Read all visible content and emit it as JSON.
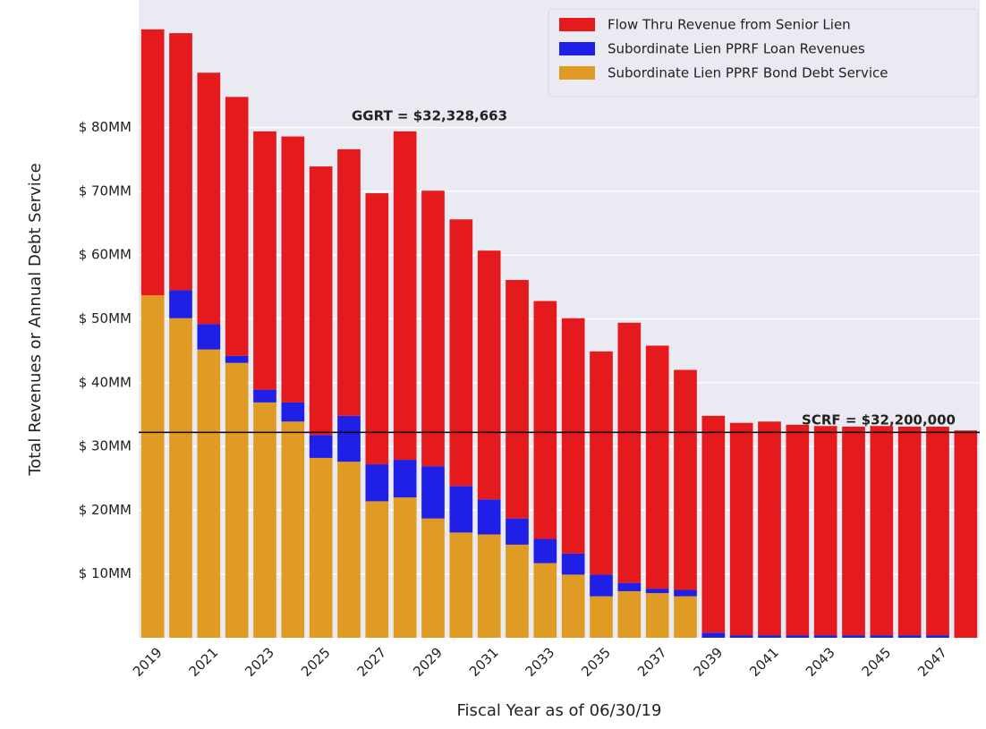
{
  "chart_data": {
    "type": "stacked_bar",
    "xlabel": "Fiscal Year as of 06/30/19",
    "ylabel": "Total Revenues or Annual Debt Service",
    "categories": [
      "2019",
      null,
      "2021",
      null,
      "2023",
      null,
      "2025",
      null,
      "2027",
      null,
      "2029",
      null,
      "2031",
      null,
      "2033",
      null,
      "2035",
      null,
      "2037",
      null,
      "2039",
      null,
      "2041",
      null,
      "2043",
      null,
      "2045",
      null,
      "2047",
      null
    ],
    "series": [
      {
        "name": "Flow Thru Revenue from Senior Lien",
        "color": "#e41a1c",
        "values": [
          41.7,
          40.3,
          39.4,
          40.6,
          40.5,
          41.7,
          42.1,
          41.8,
          42.5,
          51.5,
          43.2,
          41.8,
          39.0,
          37.4,
          37.3,
          36.9,
          35.0,
          40.8,
          38.1,
          34.5,
          34.0,
          33.3,
          33.5,
          33.0,
          32.8,
          32.7,
          32.8,
          32.7,
          32.7,
          32.5
        ]
      },
      {
        "name": "Subordinate Lien PPRF Loan Revenues",
        "color": "#1f1fe6",
        "values": [
          0,
          4.4,
          4.0,
          1.1,
          2.0,
          3.0,
          3.6,
          7.2,
          5.8,
          5.9,
          8.2,
          7.3,
          5.5,
          4.1,
          3.8,
          3.3,
          3.4,
          1.3,
          0.7,
          1.0,
          0.8,
          0.4,
          0.4,
          0.4,
          0.4,
          0.4,
          0.4,
          0.4,
          0.4,
          0
        ]
      },
      {
        "name": "Subordinate Lien PPRF Bond Debt Service",
        "color": "#e09b24",
        "values": [
          53.7,
          50.1,
          45.2,
          43.1,
          36.9,
          33.9,
          28.2,
          27.6,
          21.4,
          22.0,
          18.7,
          16.5,
          16.2,
          14.6,
          11.7,
          9.9,
          6.5,
          7.3,
          7.0,
          6.5,
          0,
          0,
          0,
          0,
          0,
          0,
          0,
          0,
          0,
          0
        ]
      }
    ],
    "ylim": [
      0,
      100
    ],
    "yticks": [
      {
        "value": 10,
        "label": "$ 10MM"
      },
      {
        "value": 20,
        "label": "$ 20MM"
      },
      {
        "value": 30,
        "label": "$ 30MM"
      },
      {
        "value": 40,
        "label": "$ 40MM"
      },
      {
        "value": 50,
        "label": "$ 50MM"
      },
      {
        "value": 60,
        "label": "$ 60MM"
      },
      {
        "value": 70,
        "label": "$ 70MM"
      },
      {
        "value": 80,
        "label": "$ 80MM"
      }
    ],
    "grid": true,
    "legend": "upper right",
    "hline": 32.2,
    "annotations": [
      "GGRT = $32,328,663",
      "SCRF = $32,200,000"
    ]
  }
}
